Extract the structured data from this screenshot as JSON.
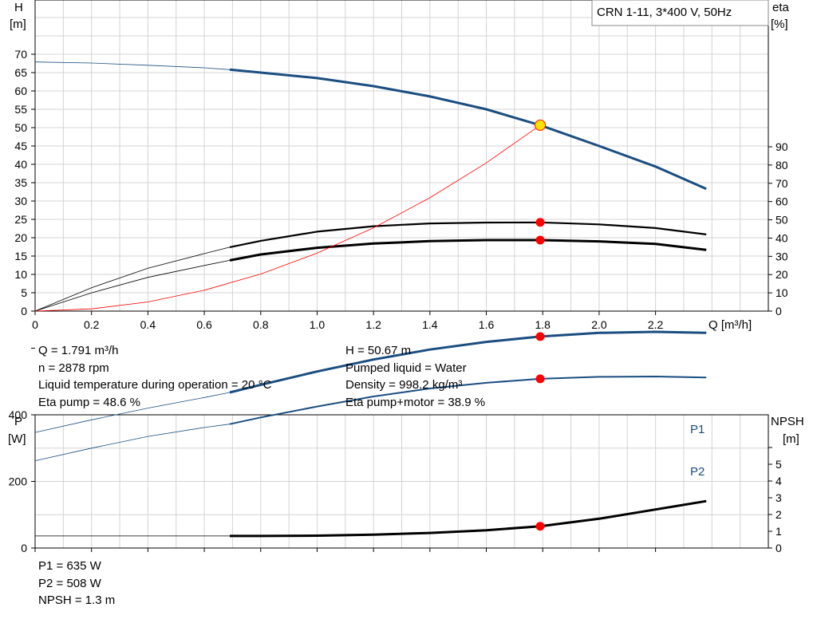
{
  "chart_data": [
    {
      "type": "line",
      "title": "CRN 1-11, 3*400 V, 50Hz",
      "xlabel": "Q [m³/h]",
      "ylabel_main": [
        "H",
        "[m]"
      ],
      "ylabel_right": [
        "eta",
        "[%]"
      ],
      "xlim": [
        0,
        2.6
      ],
      "ylim": [
        0,
        75
      ],
      "ylim_right": [
        0,
        100
      ],
      "x_ticks": [
        "0",
        "0.2",
        "0.4",
        "0.6",
        "0.8",
        "1.0",
        "1.2",
        "1.4",
        "1.6",
        "1.8",
        "2.0",
        "2.2"
      ],
      "y_ticks": [
        "0",
        "5",
        "10",
        "15",
        "20",
        "25",
        "30",
        "35",
        "40",
        "45",
        "50",
        "55",
        "60",
        "65",
        "70"
      ],
      "y_right_ticks": [
        "0",
        "10",
        "20",
        "30",
        "40",
        "50",
        "60",
        "70",
        "80",
        "90"
      ],
      "grid": true,
      "series": [
        {
          "key": "H",
          "color": "#1a4d80",
          "axis": "left",
          "x": [
            0,
            0.2,
            0.4,
            0.6,
            0.69,
            0.8,
            1.0,
            1.2,
            1.4,
            1.6,
            1.791,
            2.0,
            2.2,
            2.38
          ],
          "y": [
            67.9,
            67.6,
            67.0,
            66.3,
            65.8,
            65.0,
            63.5,
            61.3,
            58.5,
            55.0,
            50.67,
            45.0,
            39.4,
            33.3
          ]
        },
        {
          "key": "eta_pump",
          "color": "#000000",
          "axis": "right",
          "x": [
            0,
            0.2,
            0.4,
            0.6,
            0.69,
            0.8,
            1.0,
            1.2,
            1.4,
            1.6,
            1.791,
            2.0,
            2.2,
            2.38
          ],
          "y": [
            0,
            12.8,
            23.5,
            31.5,
            35.0,
            38.5,
            43.5,
            46.5,
            48.0,
            48.5,
            48.6,
            47.5,
            45.5,
            42.0
          ]
        },
        {
          "key": "eta_total",
          "color": "#000000",
          "axis": "right",
          "x": [
            0,
            0.2,
            0.4,
            0.6,
            0.69,
            0.8,
            1.0,
            1.2,
            1.4,
            1.6,
            1.791,
            2.0,
            2.2,
            2.38
          ],
          "y": [
            0,
            10.0,
            18.5,
            25.0,
            27.8,
            31.0,
            34.7,
            37.0,
            38.3,
            38.9,
            38.9,
            38.2,
            36.8,
            33.5
          ]
        },
        {
          "key": "system",
          "color": "#ff0000",
          "axis": "left",
          "x": [
            0,
            0.2,
            0.4,
            0.6,
            0.8,
            1.0,
            1.2,
            1.4,
            1.6,
            1.791
          ],
          "y": [
            0,
            0.6,
            2.5,
            5.7,
            10.1,
            15.8,
            22.7,
            30.9,
            40.4,
            50.67
          ]
        }
      ],
      "op_points": [
        {
          "x": 1.791,
          "y": 50.67,
          "axis": "left"
        },
        {
          "x": 1.791,
          "y": 48.6,
          "axis": "right"
        },
        {
          "x": 1.791,
          "y": 38.9,
          "axis": "right"
        }
      ]
    },
    {
      "type": "line",
      "xlim": [
        0,
        2.6
      ],
      "ylim": [
        0,
        700
      ],
      "ylim_right": [
        0,
        7
      ],
      "ylabel_main": [
        "P",
        "[W]"
      ],
      "ylabel_right": [
        "NPSH",
        "[m]"
      ],
      "y_ticks": [
        "0",
        "200",
        "400"
      ],
      "y_right_ticks": [
        "0",
        "1",
        "2",
        "3",
        "4",
        "5"
      ],
      "grid": true,
      "series": [
        {
          "name": "P1",
          "key": "P1",
          "color": "#1a4d80",
          "axis": "left",
          "x": [
            0,
            0.2,
            0.4,
            0.6,
            0.69,
            0.8,
            1.0,
            1.2,
            1.4,
            1.6,
            1.791,
            2.0,
            2.2,
            2.38
          ],
          "y": [
            347,
            385,
            420,
            452,
            467,
            490,
            530,
            566,
            596,
            619,
            635,
            646,
            649,
            646
          ]
        },
        {
          "name": "P2",
          "key": "P2",
          "color": "#1a4d80",
          "axis": "left",
          "x": [
            0,
            0.2,
            0.4,
            0.6,
            0.69,
            0.8,
            1.0,
            1.2,
            1.4,
            1.6,
            1.791,
            2.0,
            2.2,
            2.38
          ],
          "y": [
            262,
            300,
            335,
            362,
            372,
            392,
            425,
            455,
            479,
            496,
            508,
            514,
            515,
            512
          ]
        },
        {
          "key": "NPSH",
          "color": "#000000",
          "axis": "right",
          "x": [
            0,
            0.2,
            0.4,
            0.6,
            0.69,
            0.8,
            1.0,
            1.2,
            1.4,
            1.6,
            1.791,
            2.0,
            2.2,
            2.38
          ],
          "y": [
            0.72,
            0.72,
            0.72,
            0.72,
            0.72,
            0.72,
            0.74,
            0.8,
            0.9,
            1.06,
            1.3,
            1.75,
            2.3,
            2.8
          ]
        }
      ],
      "op_points": [
        {
          "x": 1.791,
          "y": 635,
          "axis": "left"
        },
        {
          "x": 1.791,
          "y": 508,
          "axis": "left"
        },
        {
          "x": 1.791,
          "y": 1.3,
          "axis": "right"
        }
      ]
    }
  ],
  "info_top_left": [
    "Q = 1.791 m³/h",
    "n = 2878 rpm",
    "Liquid temperature during operation = 20 °C",
    "Eta pump = 48.6 %"
  ],
  "info_top_right": [
    "H = 50.67 m",
    "Pumped liquid = Water",
    "Density = 998.2 kg/m³",
    "Eta pump+motor = 38.9 %"
  ],
  "info_bottom": [
    "P1 = 635 W",
    "P2 = 508 W",
    "NPSH = 1.3 m"
  ]
}
